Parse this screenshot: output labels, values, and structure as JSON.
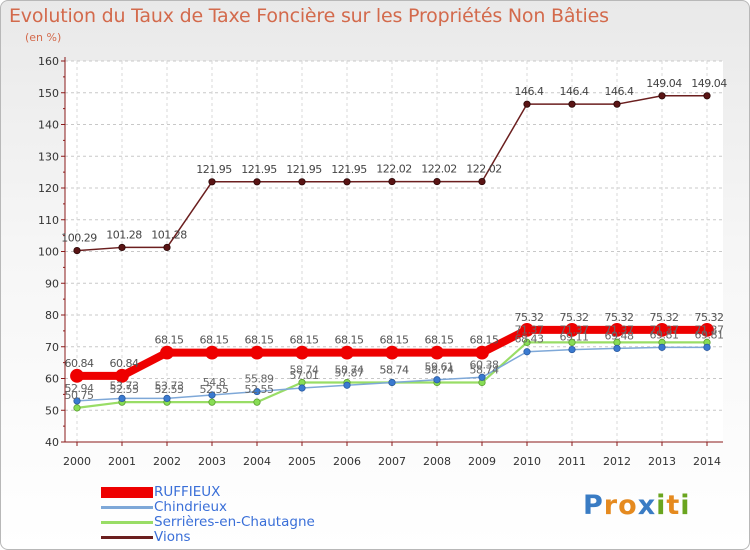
{
  "title": "Evolution du Taux de Taxe Foncière sur les Propriétés Non Bâties",
  "subtitle": "(en %)",
  "brand": {
    "p": "P",
    "r": "r",
    "o": "o",
    "x": "x",
    "i1": "i",
    "t": "t",
    "i2": "i"
  },
  "chart_data": {
    "type": "line",
    "title": "Evolution du Taux de Taxe Foncière sur les Propriétés Non Bâties",
    "ylabel": "(en %)",
    "xlabel": "",
    "ylim": [
      40,
      160
    ],
    "yticks": [
      40,
      50,
      60,
      70,
      80,
      90,
      100,
      110,
      120,
      130,
      140,
      150,
      160
    ],
    "categories": [
      "2000",
      "2001",
      "2002",
      "2003",
      "2004",
      "2005",
      "2006",
      "2007",
      "2008",
      "2009",
      "2010",
      "2011",
      "2012",
      "2013",
      "2014"
    ],
    "grid": true,
    "legend_position": "bottom-left",
    "series": [
      {
        "name": "Vions",
        "color": "#6b1f1f",
        "values": [
          100.29,
          101.28,
          101.28,
          121.95,
          121.95,
          121.95,
          121.95,
          122.02,
          122.02,
          122.02,
          146.4,
          146.4,
          146.4,
          149.04,
          149.04
        ],
        "labels": [
          "100.29",
          "101.28",
          "101.28",
          "121.95",
          "121.95",
          "121.95",
          "121.95",
          "122.02",
          "122.02",
          "122.02",
          "146.4",
          "146.4",
          "146.4",
          "149.04",
          "149.04"
        ]
      },
      {
        "name": "Serrières-en-Chautagne",
        "color": "#99dd66",
        "values": [
          50.75,
          52.55,
          52.55,
          52.55,
          52.55,
          58.74,
          58.74,
          58.74,
          58.74,
          58.74,
          71.37,
          71.37,
          71.37,
          71.37,
          71.37
        ],
        "labels": [
          "50.75",
          "52.55",
          "52.55",
          "52.55",
          "52.55",
          "58.74",
          "58.74",
          "58.74",
          "58.74",
          "58.74",
          "71.37",
          "71.37",
          "71.37",
          "71.37",
          "71.37"
        ]
      },
      {
        "name": "Chindrieux",
        "color": "#7ea8d8",
        "values": [
          52.94,
          53.73,
          53.73,
          54.8,
          55.89,
          57.01,
          57.87,
          58.74,
          59.61,
          60.38,
          68.43,
          69.11,
          69.48,
          69.81,
          69.81
        ],
        "labels": [
          "52.94",
          "53.73",
          "53.73",
          "54.8",
          "55.89",
          "57.01",
          "57.87",
          "58.74",
          "59.61",
          "60.38",
          "68.43",
          "69.11",
          "69.48",
          "69.81",
          "69.81"
        ]
      },
      {
        "name": "RUFFIEUX",
        "color": "#ee0000",
        "values": [
          60.84,
          60.84,
          68.15,
          68.15,
          68.15,
          68.15,
          68.15,
          68.15,
          68.15,
          68.15,
          75.32,
          75.32,
          75.32,
          75.32,
          75.32
        ],
        "labels": [
          "60.84",
          "60.84",
          "68.15",
          "68.15",
          "68.15",
          "68.15",
          "68.15",
          "68.15",
          "68.15",
          "68.15",
          "75.32",
          "75.32",
          "75.32",
          "75.32",
          "75.32"
        ]
      }
    ],
    "legend": [
      "RUFFIEUX",
      "Chindrieux",
      "Serrières-en-Chautagne",
      "Vions"
    ]
  }
}
